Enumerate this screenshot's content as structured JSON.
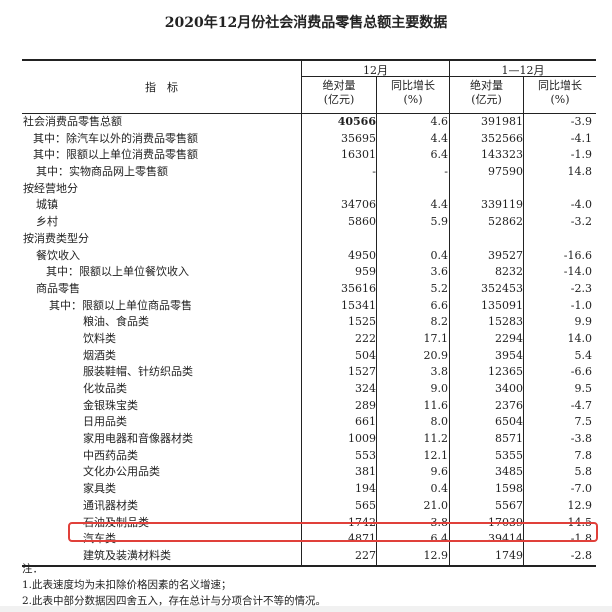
{
  "title": "2020年12月份社会消费品零售总额主要数据",
  "header": {
    "indicator": "指　标",
    "group1": "12月",
    "group2": "1—12月",
    "abs_line1": "绝对量",
    "abs_line2": "(亿元)",
    "yoy_line1": "同比增长",
    "yoy_line2": "(%)"
  },
  "rows": [
    {
      "label": "社会消费品零售总额",
      "level": 0,
      "v": [
        "40566",
        "4.6",
        "391981",
        "-3.9"
      ],
      "bold_first": true
    },
    {
      "label": "其中：除汽车以外的消费品零售额",
      "level": 1,
      "v": [
        "35695",
        "4.4",
        "352566",
        "-4.1"
      ]
    },
    {
      "label": "其中：限额以上单位消费品零售额",
      "level": 1,
      "v": [
        "16301",
        "6.4",
        "143323",
        "-1.9"
      ]
    },
    {
      "label": "其中：实物商品网上零售额",
      "level": 1.3,
      "v": [
        "-",
        "-",
        "97590",
        "14.8"
      ]
    },
    {
      "label": "按经营地分",
      "level": 0,
      "v": [
        "",
        "",
        "",
        ""
      ]
    },
    {
      "label": "城镇",
      "level": 1.3,
      "v": [
        "34706",
        "4.4",
        "339119",
        "-4.0"
      ]
    },
    {
      "label": "乡村",
      "level": 1.3,
      "v": [
        "5860",
        "5.9",
        "52862",
        "-3.2"
      ]
    },
    {
      "label": "按消费类型分",
      "level": 0,
      "v": [
        "",
        "",
        "",
        ""
      ]
    },
    {
      "label": "餐饮收入",
      "level": 1.3,
      "v": [
        "4950",
        "0.4",
        "39527",
        "-16.6"
      ]
    },
    {
      "label": "其中：限额以上单位餐饮收入",
      "level": 2.3,
      "v": [
        "959",
        "3.6",
        "8232",
        "-14.0"
      ]
    },
    {
      "label": "商品零售",
      "level": 1.3,
      "v": [
        "35616",
        "5.2",
        "352453",
        "-2.3"
      ]
    },
    {
      "label": "其中：限额以上单位商品零售",
      "level": 2.6,
      "v": [
        "15341",
        "6.6",
        "135091",
        "-1.0"
      ]
    },
    {
      "label": "粮油、食品类",
      "level": 6,
      "v": [
        "1525",
        "8.2",
        "15283",
        "9.9"
      ]
    },
    {
      "label": "饮料类",
      "level": 6,
      "v": [
        "222",
        "17.1",
        "2294",
        "14.0"
      ]
    },
    {
      "label": "烟酒类",
      "level": 6,
      "v": [
        "504",
        "20.9",
        "3954",
        "5.4"
      ]
    },
    {
      "label": "服装鞋帽、针纺织品类",
      "level": 6,
      "v": [
        "1527",
        "3.8",
        "12365",
        "-6.6"
      ]
    },
    {
      "label": "化妆品类",
      "level": 6,
      "v": [
        "324",
        "9.0",
        "3400",
        "9.5"
      ]
    },
    {
      "label": "金银珠宝类",
      "level": 6,
      "v": [
        "289",
        "11.6",
        "2376",
        "-4.7"
      ]
    },
    {
      "label": "日用品类",
      "level": 6,
      "v": [
        "661",
        "8.0",
        "6504",
        "7.5"
      ]
    },
    {
      "label": "家用电器和音像器材类",
      "level": 6,
      "v": [
        "1009",
        "11.2",
        "8571",
        "-3.8"
      ]
    },
    {
      "label": "中西药品类",
      "level": 6,
      "v": [
        "553",
        "12.1",
        "5355",
        "7.8"
      ]
    },
    {
      "label": "文化办公用品类",
      "level": 6,
      "v": [
        "381",
        "9.6",
        "3485",
        "5.8"
      ]
    },
    {
      "label": "家具类",
      "level": 6,
      "v": [
        "194",
        "0.4",
        "1598",
        "-7.0"
      ]
    },
    {
      "label": "通讯器材类",
      "level": 6,
      "v": [
        "565",
        "21.0",
        "5567",
        "12.9"
      ]
    },
    {
      "label": "石油及制品类",
      "level": 6,
      "v": [
        "1742",
        "-3.8",
        "17039",
        "-14.5"
      ]
    },
    {
      "label": "汽车类",
      "level": 6,
      "v": [
        "4871",
        "6.4",
        "39414",
        "-1.8"
      ],
      "highlighted": true
    },
    {
      "label": "建筑及装潢材料类",
      "level": 6,
      "v": [
        "227",
        "12.9",
        "1749",
        "-2.8"
      ]
    }
  ],
  "highlight_color": "#e0403a",
  "notes": [
    "注：",
    "1.此表速度均为未扣除价格因素的名义增速；",
    "2.此表中部分数据因四舍五入，存在总计与分项合计不等的情况。"
  ]
}
